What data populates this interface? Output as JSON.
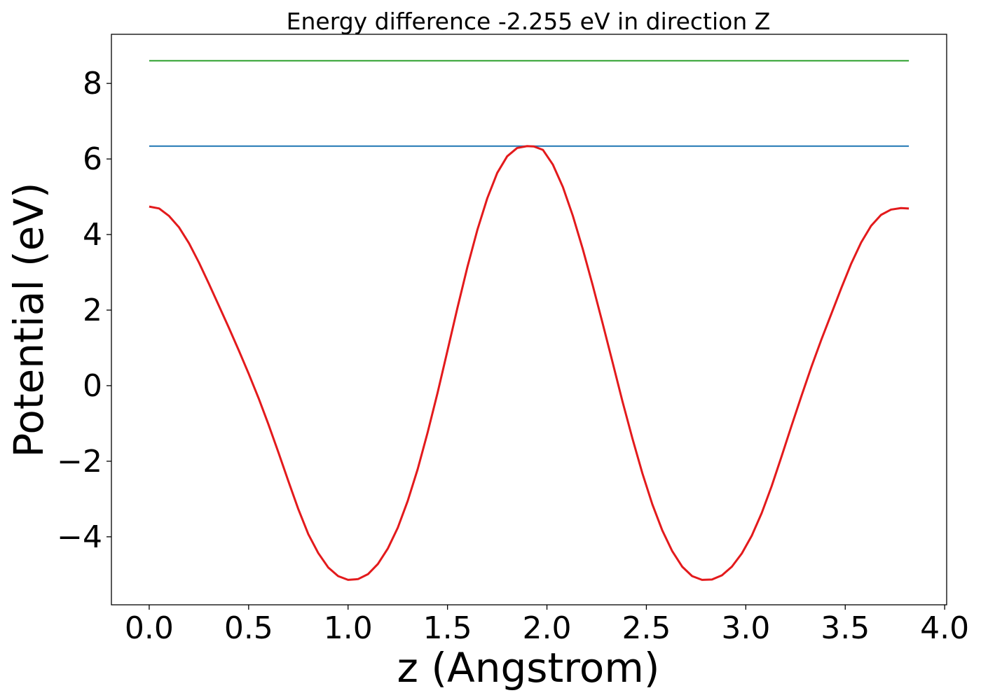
{
  "chart_data": {
    "type": "line",
    "title": "Energy difference -2.255 eV in direction Z",
    "xlabel": "z (Angstrom)",
    "ylabel": "Potential (eV)",
    "xlim": [
      -0.19,
      4.01
    ],
    "ylim": [
      -5.8,
      9.3
    ],
    "xticks": [
      0.0,
      0.5,
      1.0,
      1.5,
      2.0,
      2.5,
      3.0,
      3.5,
      4.0
    ],
    "xtick_labels": [
      "0.0",
      "0.5",
      "1.0",
      "1.5",
      "2.0",
      "2.5",
      "3.0",
      "3.5",
      "4.0"
    ],
    "yticks": [
      -4,
      -2,
      0,
      2,
      4,
      6,
      8
    ],
    "ytick_labels": [
      "−4",
      "−2",
      "0",
      "2",
      "4",
      "6",
      "8"
    ],
    "grid": false,
    "series": [
      {
        "color": "#2ca02c",
        "style": "hline",
        "x": [
          0.0,
          3.82
        ],
        "y": [
          8.6,
          8.6
        ]
      },
      {
        "color": "#1f77b4",
        "style": "hline",
        "x": [
          0.0,
          3.82
        ],
        "y": [
          6.34,
          6.34
        ]
      },
      {
        "color": "#e31a1c",
        "style": "curve",
        "x": [
          0.0,
          0.05,
          0.1,
          0.15,
          0.2,
          0.25,
          0.3,
          0.35,
          0.4,
          0.45,
          0.5,
          0.55,
          0.6,
          0.65,
          0.7,
          0.75,
          0.8,
          0.85,
          0.9,
          0.95,
          1.0,
          1.05,
          1.1,
          1.15,
          1.2,
          1.25,
          1.3,
          1.35,
          1.4,
          1.45,
          1.5,
          1.55,
          1.6,
          1.65,
          1.7,
          1.75,
          1.8,
          1.85,
          1.9,
          1.935,
          1.98,
          2.03,
          2.08,
          2.13,
          2.18,
          2.23,
          2.28,
          2.33,
          2.38,
          2.43,
          2.48,
          2.53,
          2.58,
          2.63,
          2.68,
          2.73,
          2.78,
          2.83,
          2.88,
          2.93,
          2.98,
          3.03,
          3.08,
          3.13,
          3.18,
          3.23,
          3.28,
          3.33,
          3.38,
          3.43,
          3.48,
          3.53,
          3.58,
          3.63,
          3.68,
          3.73,
          3.78,
          3.82
        ],
        "y": [
          4.74,
          4.69,
          4.49,
          4.19,
          3.77,
          3.26,
          2.7,
          2.12,
          1.54,
          0.94,
          0.32,
          -0.33,
          -1.03,
          -1.77,
          -2.53,
          -3.27,
          -3.93,
          -4.43,
          -4.81,
          -5.04,
          -5.14,
          -5.12,
          -4.99,
          -4.72,
          -4.31,
          -3.76,
          -3.05,
          -2.21,
          -1.24,
          -0.19,
          0.93,
          2.06,
          3.14,
          4.12,
          4.96,
          5.63,
          6.07,
          6.29,
          6.34,
          6.33,
          6.24,
          5.85,
          5.26,
          4.5,
          3.62,
          2.66,
          1.65,
          0.62,
          -0.42,
          -1.4,
          -2.32,
          -3.14,
          -3.83,
          -4.38,
          -4.79,
          -5.04,
          -5.14,
          -5.13,
          -5.02,
          -4.79,
          -4.44,
          -3.97,
          -3.37,
          -2.66,
          -1.87,
          -1.06,
          -0.27,
          0.5,
          1.22,
          1.9,
          2.58,
          3.23,
          3.79,
          4.23,
          4.52,
          4.66,
          4.7,
          4.69
        ]
      }
    ]
  }
}
